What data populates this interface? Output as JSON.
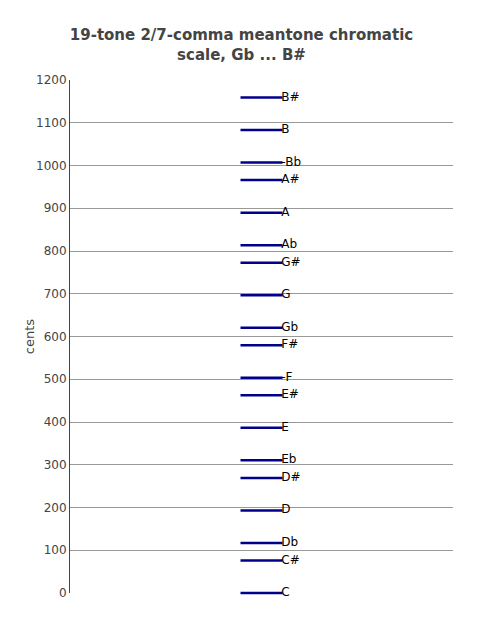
{
  "chart_data": {
    "type": "scatter",
    "title": "19-tone 2/7-comma meantone chromatic\nscale, Gb ... B#",
    "ylabel": "cents",
    "categories": [
      "C",
      "C#",
      "Db",
      "D",
      "D#",
      "Eb",
      "E",
      "E#",
      "-F",
      "F#",
      "Gb",
      "G",
      "G#",
      "Ab",
      "A",
      "A#",
      "-Bb",
      "B",
      "B#"
    ],
    "values": [
      0.0,
      76.0,
      117.1,
      193.2,
      269.2,
      310.3,
      386.3,
      462.4,
      503.4,
      579.5,
      620.5,
      696.6,
      772.6,
      813.7,
      889.7,
      965.8,
      1006.8,
      1082.9,
      1158.9
    ],
    "color": "#00008b",
    "marker": "dash",
    "ylim": [
      0,
      1200
    ],
    "yticks": [
      0,
      100,
      200,
      300,
      400,
      500,
      600,
      700,
      800,
      900,
      1000,
      1100,
      1200
    ],
    "grid": true,
    "tick_labels": "y"
  }
}
